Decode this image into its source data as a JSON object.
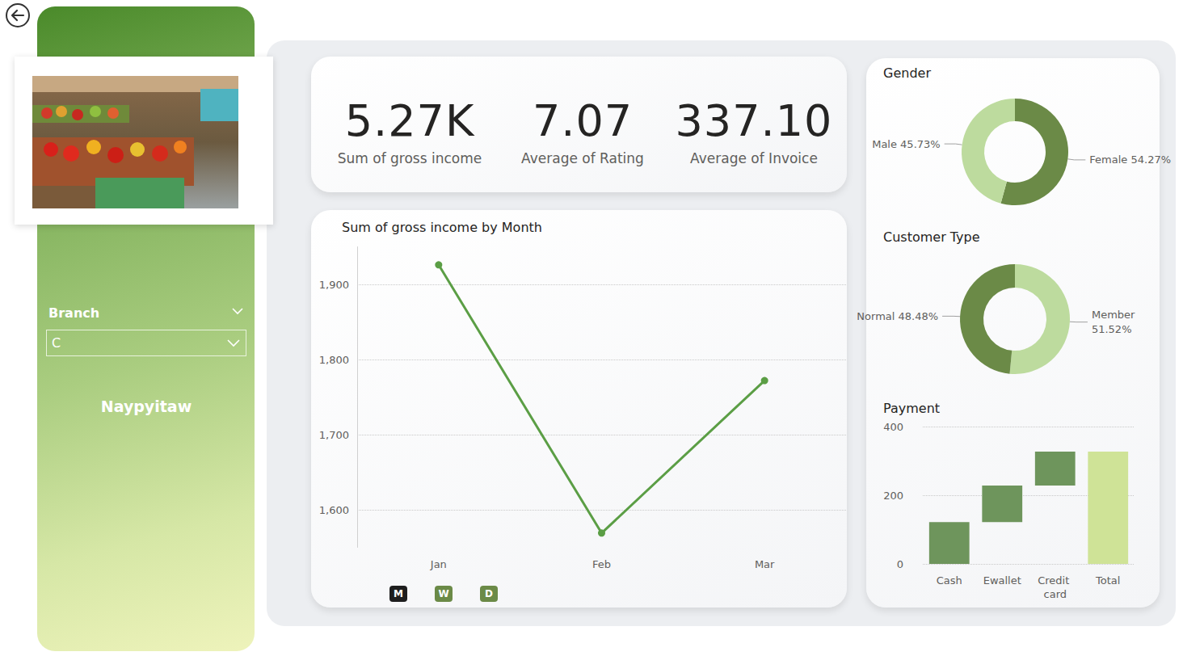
{
  "slicer": {
    "label": "Branch",
    "value": "C"
  },
  "branch_name": "Naypyitaw",
  "kpis": [
    {
      "value": "5.27K",
      "label": "Sum of gross income"
    },
    {
      "value": "7.07",
      "label": "Average of Rating"
    },
    {
      "value": "337.10",
      "label": "Average of Invoice"
    }
  ],
  "buttons": [
    "M",
    "W",
    "D"
  ],
  "chart_data": [
    {
      "type": "line",
      "title": "Sum of gross income by Month",
      "categories": [
        "Jan",
        "Feb",
        "Mar"
      ],
      "values": [
        1926,
        1569,
        1772
      ],
      "color": "#5b9e45",
      "marker": "circle",
      "ylim": [
        1550,
        1950
      ],
      "yticks": [
        {
          "value": 1600,
          "label": "1,600"
        },
        {
          "value": 1700,
          "label": "1,700"
        },
        {
          "value": 1800,
          "label": "1,800"
        },
        {
          "value": 1900,
          "label": "1,900"
        }
      ],
      "grid": true
    },
    {
      "type": "donut",
      "title": "Gender",
      "categories": [
        "Female",
        "Male"
      ],
      "values": [
        54.27,
        45.73
      ],
      "value_labels": [
        "Female 54.27%",
        "Male 45.73%"
      ],
      "colors": [
        "#6b8a47",
        "#bddb9e"
      ],
      "data_labels": true
    },
    {
      "type": "donut",
      "title": "Customer Type",
      "categories": [
        "Member",
        "Normal"
      ],
      "values": [
        51.52,
        48.48
      ],
      "value_labels": [
        "Member\n51.52%",
        "Normal 48.48%"
      ],
      "colors": [
        "#bddb9e",
        "#6b8a47"
      ],
      "data_labels": true
    },
    {
      "type": "waterfall",
      "title": "Payment",
      "categories": [
        "Cash",
        "Ewallet",
        "Credit card",
        "Total"
      ],
      "values": [
        122,
        106,
        99,
        327
      ],
      "colors": [
        "#6e955c",
        "#6e955c",
        "#6e955c",
        "#cfe397"
      ],
      "ylim": [
        0,
        400
      ],
      "yticks": [
        0,
        200,
        400
      ],
      "grid": true
    }
  ]
}
